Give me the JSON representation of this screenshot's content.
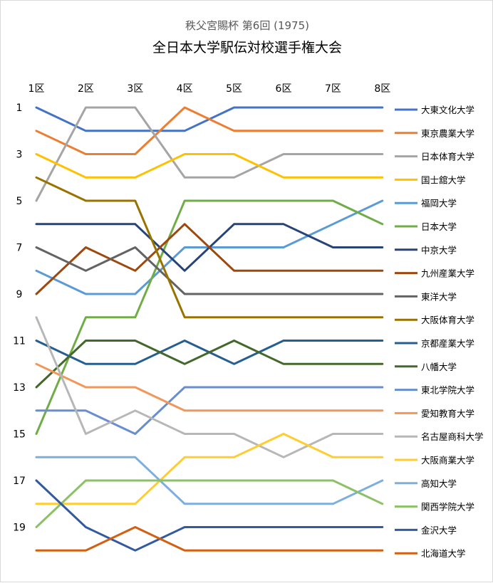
{
  "chart_data": {
    "type": "line",
    "title_line1": "秩父宮賜杯 第6回 (1975)",
    "title_line2": "全日本大学駅伝対校選手権大会",
    "categories": [
      "1区",
      "2区",
      "3区",
      "4区",
      "5区",
      "6区",
      "7区",
      "8区"
    ],
    "y_ticks": [
      "1",
      "3",
      "5",
      "7",
      "9",
      "11",
      "13",
      "15",
      "17",
      "19"
    ],
    "ylim": [
      1,
      20
    ],
    "y_reversed": true,
    "grid": false,
    "legend_position": "right",
    "series": [
      {
        "name": "大東文化大学",
        "color": "#4472C4",
        "values": [
          1,
          2,
          2,
          2,
          1,
          1,
          1,
          1
        ]
      },
      {
        "name": "東京農業大学",
        "color": "#ED7D31",
        "values": [
          2,
          3,
          3,
          1,
          2,
          2,
          2,
          2
        ]
      },
      {
        "name": "日本体育大学",
        "color": "#A5A5A5",
        "values": [
          5,
          1,
          1,
          4,
          4,
          3,
          3,
          3
        ]
      },
      {
        "name": "国士舘大学",
        "color": "#FFC000",
        "values": [
          3,
          4,
          4,
          3,
          3,
          4,
          4,
          4
        ]
      },
      {
        "name": "福岡大学",
        "color": "#5B9BD5",
        "values": [
          8,
          9,
          9,
          7,
          7,
          7,
          6,
          5
        ]
      },
      {
        "name": "日本大学",
        "color": "#70AD47",
        "values": [
          15,
          10,
          10,
          5,
          5,
          5,
          5,
          6
        ]
      },
      {
        "name": "中京大学",
        "color": "#264478",
        "values": [
          6,
          6,
          6,
          8,
          6,
          6,
          7,
          7
        ]
      },
      {
        "name": "九州産業大学",
        "color": "#9E480E",
        "values": [
          9,
          7,
          8,
          6,
          8,
          8,
          8,
          8
        ]
      },
      {
        "name": "東洋大学",
        "color": "#636363",
        "values": [
          7,
          8,
          7,
          9,
          9,
          9,
          9,
          9
        ]
      },
      {
        "name": "大阪体育大学",
        "color": "#997300",
        "values": [
          4,
          5,
          5,
          10,
          10,
          10,
          10,
          10
        ]
      },
      {
        "name": "京都産業大学",
        "color": "#255E91",
        "values": [
          11,
          12,
          12,
          11,
          12,
          11,
          11,
          11
        ]
      },
      {
        "name": "八幡大学",
        "color": "#43682B",
        "values": [
          13,
          11,
          11,
          12,
          11,
          12,
          12,
          12
        ]
      },
      {
        "name": "東北学院大学",
        "color": "#698ED0",
        "values": [
          14,
          14,
          15,
          13,
          13,
          13,
          13,
          13
        ]
      },
      {
        "name": "愛知教育大学",
        "color": "#F1975A",
        "values": [
          12,
          13,
          13,
          14,
          14,
          14,
          14,
          14
        ]
      },
      {
        "name": "名古屋商科大学",
        "color": "#B7B7B7",
        "values": [
          10,
          15,
          14,
          15,
          15,
          16,
          15,
          15
        ]
      },
      {
        "name": "大阪商業大学",
        "color": "#FFCD33",
        "values": [
          18,
          18,
          18,
          16,
          16,
          15,
          16,
          16
        ]
      },
      {
        "name": "高知大学",
        "color": "#7CAFDD",
        "values": [
          16,
          16,
          16,
          18,
          18,
          18,
          18,
          17
        ]
      },
      {
        "name": "関西学院大学",
        "color": "#8CC168",
        "values": [
          19,
          17,
          17,
          17,
          17,
          17,
          17,
          18
        ]
      },
      {
        "name": "金沢大学",
        "color": "#335AA1",
        "values": [
          17,
          19,
          20,
          19,
          19,
          19,
          19,
          19
        ]
      },
      {
        "name": "北海道大学",
        "color": "#D26012",
        "values": [
          20,
          20,
          19,
          20,
          20,
          20,
          20,
          20
        ]
      }
    ]
  }
}
